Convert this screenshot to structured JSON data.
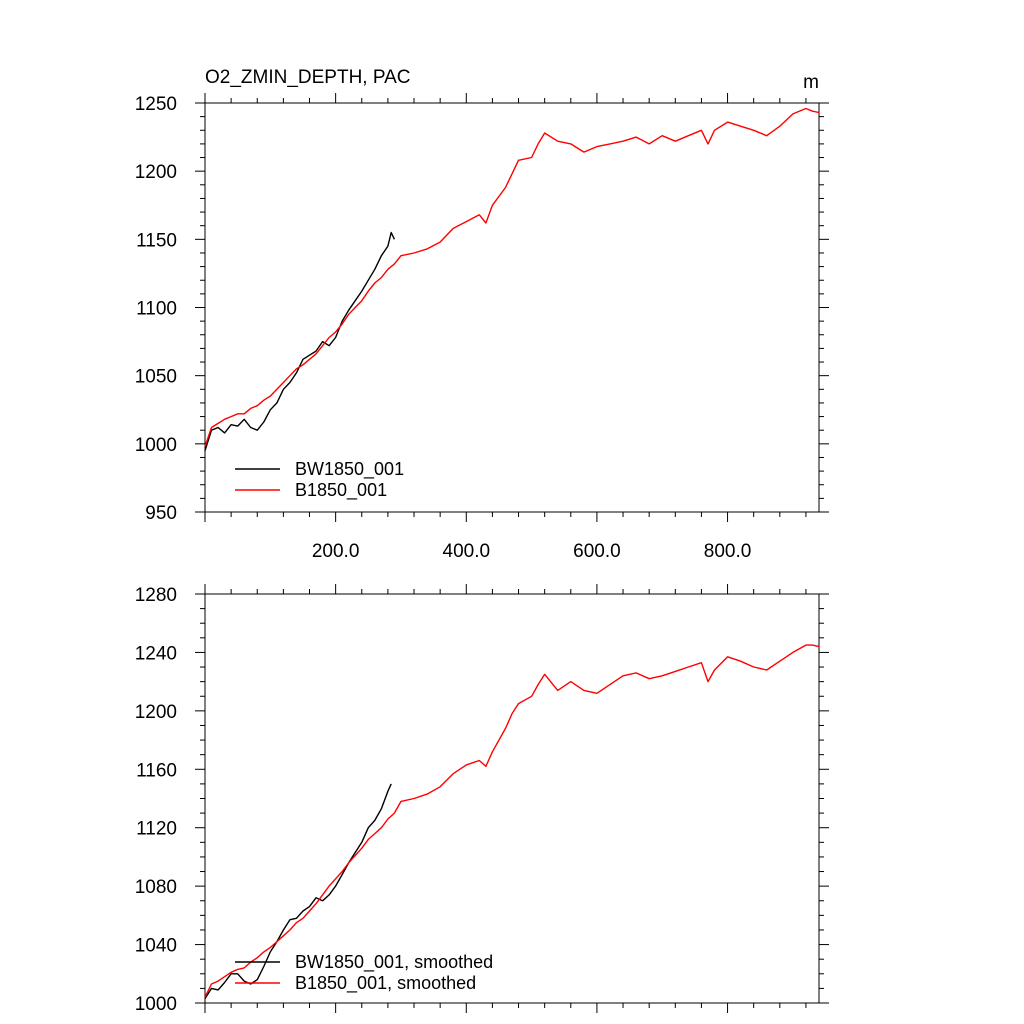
{
  "chart_data": [
    {
      "type": "line",
      "title": "O2_ZMIN_DEPTH, PAC",
      "units": "m",
      "xlim": [
        0,
        940
      ],
      "ylim": [
        950,
        1250
      ],
      "xticks": [
        200,
        400,
        600,
        800
      ],
      "xtick_labels": [
        "200.0",
        "400.0",
        "600.0",
        "800.0"
      ],
      "yticks": [
        950,
        1000,
        1050,
        1100,
        1150,
        1200,
        1250
      ],
      "ytick_labels": [
        "950",
        "1000",
        "1050",
        "1100",
        "1150",
        "1200",
        "1250"
      ],
      "legend": [
        "BW1850_001",
        "B1850_001"
      ],
      "series": [
        {
          "name": "BW1850_001",
          "color": "#000000",
          "x": [
            0,
            10,
            20,
            30,
            40,
            50,
            60,
            70,
            80,
            90,
            100,
            110,
            120,
            130,
            140,
            150,
            160,
            170,
            180,
            190,
            200,
            210,
            220,
            230,
            240,
            250,
            260,
            270,
            280,
            285,
            290
          ],
          "y": [
            995,
            1010,
            1012,
            1008,
            1014,
            1013,
            1018,
            1012,
            1010,
            1016,
            1025,
            1030,
            1040,
            1045,
            1052,
            1062,
            1065,
            1068,
            1075,
            1072,
            1078,
            1090,
            1098,
            1105,
            1112,
            1120,
            1128,
            1138,
            1145,
            1155,
            1150
          ]
        },
        {
          "name": "B1850_001",
          "color": "#ff0000",
          "x": [
            0,
            10,
            20,
            30,
            40,
            50,
            60,
            70,
            80,
            90,
            100,
            110,
            120,
            130,
            140,
            150,
            160,
            170,
            180,
            190,
            200,
            210,
            220,
            230,
            240,
            250,
            260,
            270,
            280,
            290,
            300,
            320,
            340,
            360,
            380,
            400,
            420,
            430,
            440,
            460,
            470,
            480,
            500,
            510,
            520,
            540,
            560,
            580,
            600,
            620,
            640,
            660,
            680,
            700,
            720,
            740,
            760,
            770,
            780,
            800,
            820,
            840,
            860,
            880,
            900,
            920,
            930,
            940
          ],
          "y": [
            998,
            1012,
            1015,
            1018,
            1020,
            1022,
            1022,
            1026,
            1028,
            1032,
            1035,
            1040,
            1045,
            1050,
            1055,
            1058,
            1062,
            1066,
            1072,
            1078,
            1082,
            1088,
            1095,
            1100,
            1105,
            1112,
            1118,
            1122,
            1128,
            1132,
            1138,
            1140,
            1143,
            1148,
            1158,
            1163,
            1168,
            1162,
            1175,
            1188,
            1198,
            1208,
            1210,
            1220,
            1228,
            1222,
            1220,
            1214,
            1218,
            1220,
            1222,
            1225,
            1220,
            1226,
            1222,
            1226,
            1230,
            1220,
            1230,
            1236,
            1233,
            1230,
            1226,
            1233,
            1242,
            1246,
            1244,
            1243
          ]
        }
      ]
    },
    {
      "type": "line",
      "title": "",
      "xlim": [
        0,
        940
      ],
      "ylim": [
        1000,
        1280
      ],
      "yticks": [
        1000,
        1040,
        1080,
        1120,
        1160,
        1200,
        1240,
        1280
      ],
      "ytick_labels": [
        "1000",
        "1040",
        "1080",
        "1120",
        "1160",
        "1200",
        "1240",
        "1280"
      ],
      "legend": [
        "BW1850_001, smoothed",
        "B1850_001, smoothed"
      ],
      "series": [
        {
          "name": "BW1850_001, smoothed",
          "color": "#000000",
          "x": [
            0,
            10,
            20,
            30,
            40,
            50,
            60,
            70,
            80,
            90,
            100,
            110,
            120,
            130,
            140,
            150,
            160,
            170,
            180,
            190,
            200,
            210,
            220,
            230,
            240,
            250,
            260,
            270,
            280,
            285
          ],
          "y": [
            1003,
            1010,
            1009,
            1014,
            1020,
            1020,
            1015,
            1013,
            1016,
            1025,
            1035,
            1042,
            1050,
            1057,
            1058,
            1063,
            1066,
            1072,
            1070,
            1074,
            1080,
            1088,
            1096,
            1103,
            1110,
            1120,
            1125,
            1133,
            1145,
            1150
          ]
        },
        {
          "name": "B1850_001, smoothed",
          "color": "#ff0000",
          "x": [
            0,
            10,
            20,
            30,
            40,
            50,
            60,
            70,
            80,
            90,
            100,
            110,
            120,
            130,
            140,
            150,
            160,
            170,
            180,
            190,
            200,
            210,
            220,
            230,
            240,
            250,
            260,
            270,
            280,
            290,
            300,
            320,
            340,
            360,
            380,
            400,
            420,
            430,
            440,
            460,
            470,
            480,
            500,
            510,
            520,
            540,
            560,
            580,
            600,
            620,
            640,
            660,
            680,
            700,
            720,
            740,
            760,
            770,
            780,
            800,
            820,
            840,
            860,
            880,
            900,
            920,
            930,
            940
          ],
          "y": [
            1004,
            1013,
            1015,
            1018,
            1021,
            1023,
            1024,
            1028,
            1031,
            1035,
            1038,
            1042,
            1046,
            1050,
            1055,
            1058,
            1063,
            1068,
            1074,
            1080,
            1085,
            1090,
            1096,
            1101,
            1106,
            1112,
            1116,
            1120,
            1126,
            1130,
            1138,
            1140,
            1143,
            1148,
            1157,
            1163,
            1166,
            1162,
            1172,
            1188,
            1198,
            1205,
            1210,
            1218,
            1225,
            1214,
            1220,
            1214,
            1212,
            1218,
            1224,
            1226,
            1222,
            1224,
            1227,
            1230,
            1233,
            1220,
            1228,
            1237,
            1234,
            1230,
            1228,
            1234,
            1240,
            1245,
            1245,
            1244
          ]
        }
      ]
    }
  ]
}
